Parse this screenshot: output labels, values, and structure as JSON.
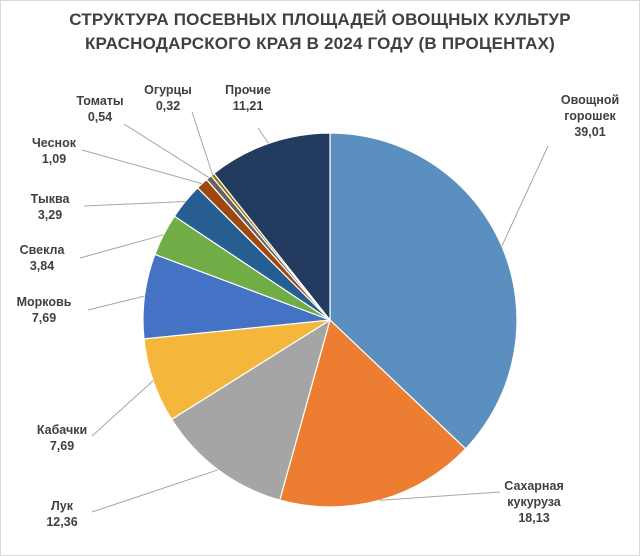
{
  "chart_data": {
    "type": "pie",
    "title_line1": "СТРУКТУРА ПОСЕВНЫХ ПЛОЩАДЕЙ ОВОЩНЫХ КУЛЬТУР",
    "title_line2": "КРАСНОДАРСКОГО КРАЯ В 2024 ГОДУ (В ПРОЦЕНТАХ)",
    "slices": [
      {
        "label": "Овощной горошек",
        "display_label_lines": [
          "Овощной",
          "горошек"
        ],
        "value_text": "39,01",
        "value": 39.01,
        "color": "#5b8fc0"
      },
      {
        "label": "Сахарная кукуруза",
        "display_label_lines": [
          "Сахарная",
          "кукуруза"
        ],
        "value_text": "18,13",
        "value": 18.13,
        "color": "#ed7d31"
      },
      {
        "label": "Лук",
        "display_label_lines": [
          "Лук"
        ],
        "value_text": "12,36",
        "value": 12.36,
        "color": "#a5a5a5"
      },
      {
        "label": "Кабачки",
        "display_label_lines": [
          "Кабачки"
        ],
        "value_text": "7,69",
        "value": 7.69,
        "color": "#f4b63b"
      },
      {
        "label": "Морковь",
        "display_label_lines": [
          "Морковь"
        ],
        "value_text": "7,69",
        "value": 7.69,
        "color": "#4472c4"
      },
      {
        "label": "Свекла",
        "display_label_lines": [
          "Свекла"
        ],
        "value_text": "3,84",
        "value": 3.84,
        "color": "#70ad47"
      },
      {
        "label": "Тыква",
        "display_label_lines": [
          "Тыква"
        ],
        "value_text": "3,29",
        "value": 3.29,
        "color": "#265e91"
      },
      {
        "label": "Чеснок",
        "display_label_lines": [
          "Чеснок"
        ],
        "value_text": "1,09",
        "value": 1.09,
        "color": "#9e480e"
      },
      {
        "label": "Томаты",
        "display_label_lines": [
          "Томаты"
        ],
        "value_text": "0,54",
        "value": 0.54,
        "color": "#636363"
      },
      {
        "label": "Огурцы",
        "display_label_lines": [
          "Огурцы"
        ],
        "value_text": "0,32",
        "value": 0.32,
        "color": "#997300"
      },
      {
        "label": "Прочие",
        "display_label_lines": [
          "Прочие"
        ],
        "value_text": "11,21",
        "value": 11.21,
        "color": "#243b60"
      }
    ],
    "start": "12 o'clock",
    "direction": "clockwise",
    "legend": "none",
    "data_labels": "outside with leader lines"
  }
}
